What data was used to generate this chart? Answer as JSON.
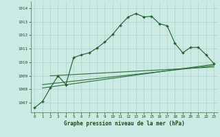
{
  "background_color": "#cceae4",
  "grid_color": "#aad4cc",
  "line_color_main": "#1a5c2a",
  "line_color_flat": "#2d6e3a",
  "xlabel": "Graphe pression niveau de la mer (hPa)",
  "xlim": [
    -0.5,
    23.5
  ],
  "ylim": [
    1006.3,
    1014.5
  ],
  "yticks": [
    1007,
    1008,
    1009,
    1010,
    1011,
    1012,
    1013,
    1014
  ],
  "xticks": [
    0,
    1,
    2,
    3,
    4,
    5,
    6,
    7,
    8,
    9,
    10,
    11,
    12,
    13,
    14,
    15,
    16,
    17,
    18,
    19,
    20,
    21,
    22,
    23
  ],
  "main_series": [
    1006.65,
    1007.1,
    1008.1,
    1009.0,
    1008.35,
    1010.35,
    1010.55,
    1010.7,
    1011.05,
    1011.5,
    1012.05,
    1012.75,
    1013.35,
    1013.6,
    1013.35,
    1013.4,
    1012.85,
    1012.7,
    1011.4,
    1010.7,
    1011.1,
    1011.1,
    1010.55,
    1009.9
  ],
  "flat_series1_x": [
    1,
    23
  ],
  "flat_series1_y": [
    1008.1,
    1009.85
  ],
  "flat_series2_x": [
    1,
    23
  ],
  "flat_series2_y": [
    1008.35,
    1009.75
  ],
  "flat_series3_x": [
    2,
    23
  ],
  "flat_series3_y": [
    1009.0,
    1009.65
  ]
}
